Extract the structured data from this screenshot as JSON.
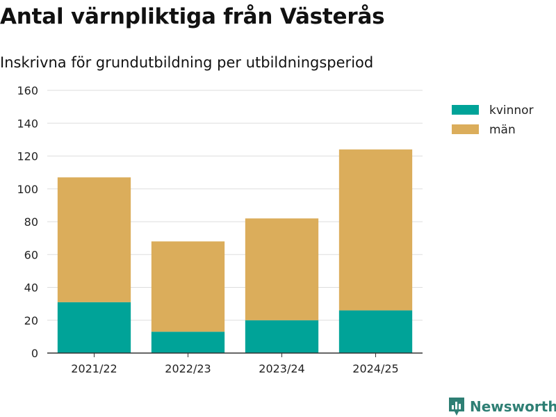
{
  "chart_data": {
    "type": "bar",
    "stacked": true,
    "title": "Antal värnpliktiga från Västerås",
    "subtitle": "Inskrivna för grundutbildning per utbildningsperiod",
    "categories": [
      "2021/22",
      "2022/23",
      "2023/24",
      "2024/25"
    ],
    "series": [
      {
        "name": "kvinnor",
        "color": "#00a398",
        "values": [
          31,
          13,
          20,
          26
        ]
      },
      {
        "name": "män",
        "color": "#dbad5b",
        "values": [
          76,
          55,
          62,
          98
        ]
      }
    ],
    "y_ticks": [
      0,
      20,
      40,
      60,
      80,
      100,
      120,
      140,
      160
    ],
    "ylim": [
      0,
      160
    ],
    "grid": true,
    "legend_position": "top-right"
  },
  "brand": {
    "name": "Newsworthy",
    "icon": "newsworthy-logo-icon",
    "color": "#2e7f74"
  }
}
